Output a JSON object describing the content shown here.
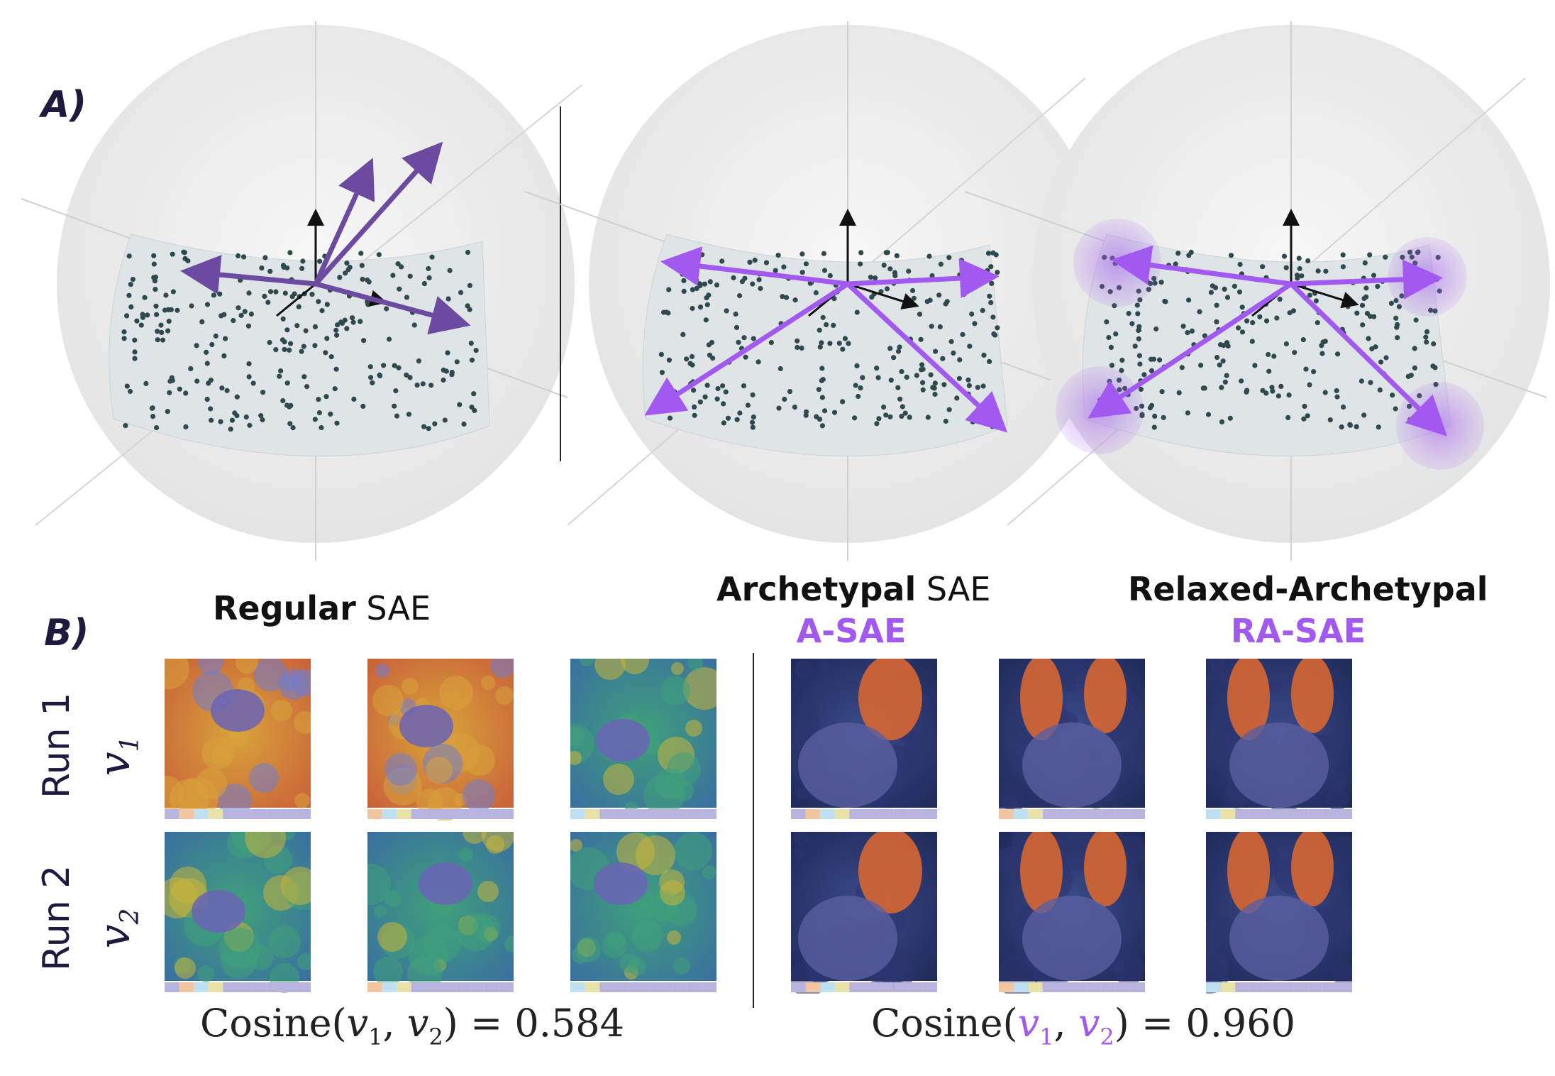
{
  "panel_a_label": "A)",
  "panel_b_label": "B)",
  "columns": [
    {
      "bold": "Regular",
      "rest": " SAE",
      "sub": ""
    },
    {
      "bold": "Archetypal",
      "rest": " SAE",
      "sub": "A-SAE"
    },
    {
      "bold": "Relaxed-Archetypal",
      "rest": "",
      "sub": "RA-SAE"
    }
  ],
  "rows": [
    {
      "run": "Run 1",
      "v": "v",
      "sub": "1"
    },
    {
      "run": "Run 2",
      "v": "v",
      "sub": "2"
    }
  ],
  "cosine_left": {
    "prefix": "Cosine(",
    "v1": "v",
    "s1": "1",
    "v2": "v",
    "s2": "2",
    "suffix": ") = 0.584"
  },
  "cosine_right": {
    "prefix": "Cosine(",
    "v1": "v",
    "s1": "1",
    "v2": "v",
    "s2": "2",
    "suffix": ") = 0.960"
  },
  "colors": {
    "purple": "#a259f0",
    "dark_purple": "#6b4aa0",
    "navy": "#1f1a3d"
  },
  "tiles": {
    "left": [
      "heatmap-hot-rabbit",
      "heatmap-hot-rabbit",
      "heatmap-cool-rabbit"
    ],
    "right": [
      "heatmap-ear",
      "heatmap-ears",
      "heatmap-ears"
    ]
  }
}
